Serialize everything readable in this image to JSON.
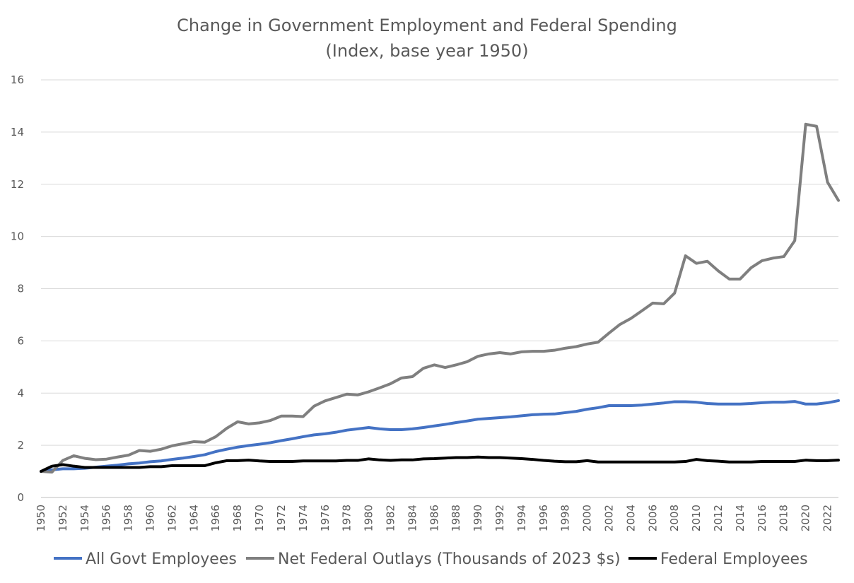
{
  "chart_data": {
    "type": "line",
    "title": "Change in Government Employment and Federal Spending",
    "subtitle": "(Index, base year 1950)",
    "xlabel": "",
    "ylabel": "",
    "ylim": [
      0,
      16
    ],
    "y_ticks": [
      "0",
      "2",
      "4",
      "6",
      "8",
      "10",
      "12",
      "14",
      "16"
    ],
    "grid": true,
    "legend_position": "bottom",
    "x": [
      1950,
      1951,
      1952,
      1953,
      1954,
      1955,
      1956,
      1957,
      1958,
      1959,
      1960,
      1961,
      1962,
      1963,
      1964,
      1965,
      1966,
      1967,
      1968,
      1969,
      1970,
      1971,
      1972,
      1973,
      1974,
      1975,
      1976,
      1977,
      1978,
      1979,
      1980,
      1981,
      1982,
      1983,
      1984,
      1985,
      1986,
      1987,
      1988,
      1989,
      1990,
      1991,
      1992,
      1993,
      1994,
      1995,
      1996,
      1997,
      1998,
      1999,
      2000,
      2001,
      2002,
      2003,
      2004,
      2005,
      2006,
      2007,
      2008,
      2009,
      2010,
      2011,
      2012,
      2013,
      2014,
      2015,
      2016,
      2017,
      2018,
      2019,
      2020,
      2021,
      2022,
      2023
    ],
    "x_tick_labels": [
      "1950",
      "1952",
      "1954",
      "1956",
      "1958",
      "1960",
      "1962",
      "1964",
      "1966",
      "1968",
      "1970",
      "1972",
      "1974",
      "1976",
      "1978",
      "1980",
      "1982",
      "1984",
      "1986",
      "1988",
      "1990",
      "1992",
      "1994",
      "1996",
      "1998",
      "2000",
      "2002",
      "2004",
      "2006",
      "2008",
      "2010",
      "2012",
      "2014",
      "2016",
      "2018",
      "2020",
      "2022"
    ],
    "series": [
      {
        "name": "All Govt Employees",
        "color": "#4472c4",
        "values": [
          1.0,
          1.06,
          1.1,
          1.1,
          1.12,
          1.16,
          1.2,
          1.24,
          1.29,
          1.32,
          1.37,
          1.4,
          1.46,
          1.51,
          1.57,
          1.64,
          1.76,
          1.85,
          1.93,
          1.99,
          2.04,
          2.1,
          2.18,
          2.25,
          2.33,
          2.4,
          2.44,
          2.5,
          2.58,
          2.63,
          2.68,
          2.63,
          2.6,
          2.6,
          2.63,
          2.68,
          2.74,
          2.8,
          2.87,
          2.93,
          3.0,
          3.03,
          3.06,
          3.09,
          3.13,
          3.17,
          3.19,
          3.2,
          3.25,
          3.3,
          3.38,
          3.44,
          3.52,
          3.52,
          3.52,
          3.54,
          3.58,
          3.62,
          3.67,
          3.67,
          3.65,
          3.6,
          3.58,
          3.58,
          3.58,
          3.6,
          3.63,
          3.65,
          3.65,
          3.68,
          3.58,
          3.58,
          3.63,
          3.71
        ]
      },
      {
        "name": "Net Federal Outlays (Thousands of 2023 $s)",
        "color": "#7f7f7f",
        "values": [
          1.0,
          0.97,
          1.42,
          1.6,
          1.5,
          1.45,
          1.47,
          1.55,
          1.62,
          1.8,
          1.77,
          1.85,
          1.98,
          2.06,
          2.14,
          2.12,
          2.33,
          2.65,
          2.9,
          2.82,
          2.86,
          2.95,
          3.12,
          3.12,
          3.1,
          3.5,
          3.7,
          3.83,
          3.96,
          3.93,
          4.05,
          4.2,
          4.36,
          4.58,
          4.63,
          4.95,
          5.08,
          4.98,
          5.08,
          5.2,
          5.41,
          5.5,
          5.55,
          5.5,
          5.58,
          5.6,
          5.6,
          5.64,
          5.72,
          5.78,
          5.88,
          5.95,
          6.3,
          6.63,
          6.86,
          7.15,
          7.45,
          7.42,
          7.83,
          9.26,
          8.97,
          9.05,
          8.68,
          8.37,
          8.37,
          8.8,
          9.07,
          9.17,
          9.23,
          9.84,
          14.3,
          14.22,
          12.08,
          11.38
        ]
      },
      {
        "name": "Federal Employees",
        "color": "#000000",
        "values": [
          1.0,
          1.2,
          1.26,
          1.2,
          1.15,
          1.15,
          1.15,
          1.15,
          1.15,
          1.15,
          1.18,
          1.18,
          1.22,
          1.22,
          1.22,
          1.22,
          1.33,
          1.41,
          1.41,
          1.43,
          1.4,
          1.38,
          1.38,
          1.38,
          1.4,
          1.4,
          1.4,
          1.4,
          1.42,
          1.42,
          1.48,
          1.44,
          1.42,
          1.44,
          1.44,
          1.48,
          1.49,
          1.51,
          1.53,
          1.53,
          1.55,
          1.53,
          1.53,
          1.51,
          1.49,
          1.46,
          1.42,
          1.39,
          1.37,
          1.37,
          1.41,
          1.36,
          1.36,
          1.36,
          1.36,
          1.36,
          1.36,
          1.36,
          1.36,
          1.38,
          1.46,
          1.41,
          1.39,
          1.36,
          1.36,
          1.36,
          1.38,
          1.38,
          1.38,
          1.38,
          1.43,
          1.41,
          1.41,
          1.43
        ]
      }
    ]
  }
}
